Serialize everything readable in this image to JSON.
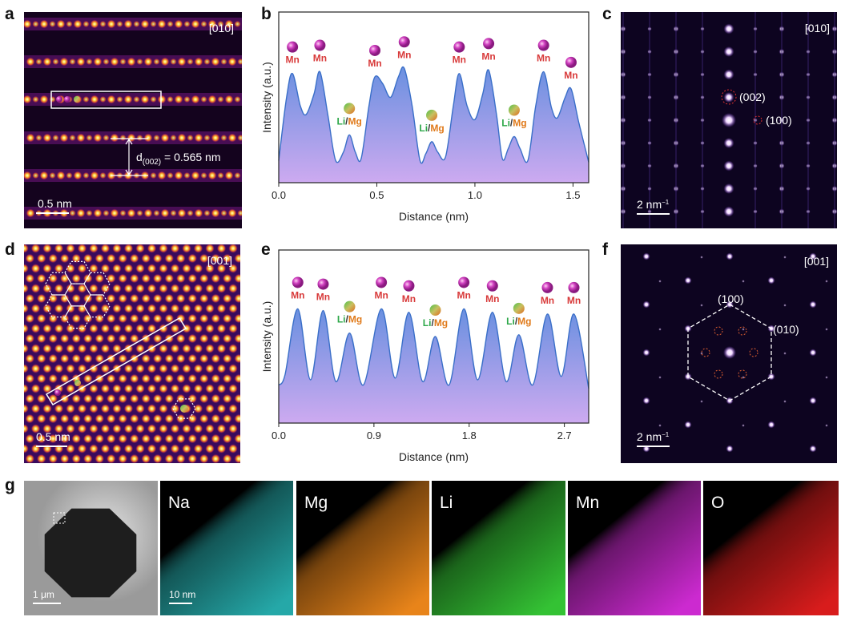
{
  "panel_labels": [
    "a",
    "b",
    "c",
    "d",
    "e",
    "f",
    "g"
  ],
  "panel_a": {
    "zone_axis": "[010]",
    "spacing_label": {
      "prefix": "d",
      "subscript": "(002)",
      "text": " = 0.565 nm"
    },
    "scale_bar": "0.5 nm"
  },
  "panel_c": {
    "zone_axis": "[010]",
    "spots": [
      "(002)",
      "(100)"
    ],
    "scale_bar": {
      "text": "2 nm",
      "superscript": "−1"
    }
  },
  "panel_d": {
    "zone_axis": "[001]",
    "scale_bar": "0.5 nm"
  },
  "panel_f": {
    "zone_axis": "[001]",
    "spots": [
      "(100)",
      "(010)"
    ],
    "scale_bar": {
      "text": "2 nm",
      "superscript": "−1"
    }
  },
  "panel_g": {
    "tem_scale_bar": "1 μm",
    "map_scale_bar": "10 nm",
    "maps": [
      "Na",
      "Mg",
      "Li",
      "Mn",
      "O"
    ]
  },
  "chart_data": [
    {
      "type": "line",
      "xlabel": "Distance (nm)",
      "ylabel": "Intensity (a.u.)",
      "color": "#3a6fc8",
      "xlim": [
        0,
        1.58
      ],
      "ylim": [
        0,
        1
      ],
      "xticks": [
        {
          "value": 0,
          "label": "0.0"
        },
        0.5,
        {
          "value": 1,
          "label": "1.0"
        },
        1.5
      ],
      "x": [
        0.0,
        0.04,
        0.07,
        0.11,
        0.14,
        0.18,
        0.21,
        0.25,
        0.29,
        0.33,
        0.36,
        0.39,
        0.42,
        0.46,
        0.49,
        0.53,
        0.57,
        0.61,
        0.64,
        0.68,
        0.72,
        0.75,
        0.78,
        0.81,
        0.85,
        0.89,
        0.92,
        0.96,
        1.0,
        1.04,
        1.07,
        1.11,
        1.14,
        1.17,
        1.2,
        1.23,
        1.27,
        1.31,
        1.35,
        1.39,
        1.42,
        1.46,
        1.49,
        1.53,
        1.58
      ],
      "values": [
        0.13,
        0.5,
        0.64,
        0.45,
        0.4,
        0.52,
        0.65,
        0.4,
        0.13,
        0.18,
        0.28,
        0.18,
        0.14,
        0.45,
        0.62,
        0.58,
        0.5,
        0.62,
        0.67,
        0.45,
        0.13,
        0.17,
        0.24,
        0.18,
        0.15,
        0.45,
        0.64,
        0.45,
        0.37,
        0.52,
        0.66,
        0.4,
        0.14,
        0.2,
        0.27,
        0.2,
        0.13,
        0.45,
        0.65,
        0.44,
        0.38,
        0.5,
        0.55,
        0.35,
        0.12
      ],
      "atoms": [
        {
          "label": [
            "Mn"
          ]
        },
        {
          "label": [
            "Mn"
          ]
        },
        {
          "label": [
            "Li",
            "/",
            "Mg"
          ]
        },
        {
          "label": [
            "Mn"
          ]
        },
        {
          "label": [
            "Mn"
          ]
        },
        {
          "label": [
            "Li",
            "/",
            "Mg"
          ]
        },
        {
          "label": [
            "Mn"
          ]
        },
        {
          "label": [
            "Mn"
          ]
        },
        {
          "label": [
            "Li",
            "/",
            "Mg"
          ]
        },
        {
          "label": [
            "Mn"
          ]
        },
        {
          "label": [
            "Mn"
          ]
        }
      ]
    },
    {
      "type": "line",
      "xlabel": "Distance (nm)",
      "ylabel": "Intensity (a.u.)",
      "color": "#3a6fc8",
      "xlim": [
        0,
        2.93
      ],
      "ylim": [
        0,
        1
      ],
      "xticks": [
        {
          "value": 0,
          "label": "0.0"
        },
        0.9,
        1.8,
        2.7
      ],
      "x": [
        0.0,
        0.06,
        0.18,
        0.3,
        0.42,
        0.54,
        0.67,
        0.8,
        0.97,
        1.1,
        1.23,
        1.36,
        1.48,
        1.61,
        1.75,
        1.88,
        2.02,
        2.15,
        2.27,
        2.4,
        2.54,
        2.67,
        2.79,
        2.93
      ],
      "values": [
        0.22,
        0.28,
        0.66,
        0.25,
        0.65,
        0.24,
        0.52,
        0.22,
        0.66,
        0.26,
        0.64,
        0.24,
        0.5,
        0.22,
        0.66,
        0.25,
        0.64,
        0.24,
        0.51,
        0.22,
        0.63,
        0.27,
        0.63,
        0.2
      ],
      "atoms": [
        {
          "label": [
            "Mn"
          ]
        },
        {
          "label": [
            "Mn"
          ]
        },
        {
          "label": [
            "Li",
            "/",
            "Mg"
          ]
        },
        {
          "label": [
            "Mn"
          ]
        },
        {
          "label": [
            "Mn"
          ]
        },
        {
          "label": [
            "Li",
            "/",
            "Mg"
          ]
        },
        {
          "label": [
            "Mn"
          ]
        },
        {
          "label": [
            "Mn"
          ]
        },
        {
          "label": [
            "Li",
            "/",
            "Mg"
          ]
        },
        {
          "label": [
            "Mn"
          ]
        },
        {
          "label": [
            "Mn"
          ]
        }
      ]
    }
  ]
}
